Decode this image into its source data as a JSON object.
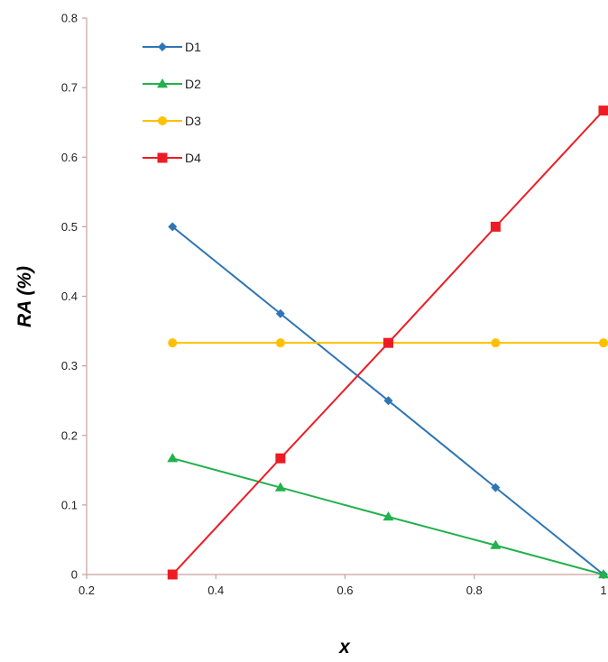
{
  "chart_data": {
    "type": "line",
    "title": "",
    "xlabel": "x",
    "ylabel": "RA (%)",
    "xlim": [
      0.2,
      1.0
    ],
    "ylim": [
      0,
      0.8
    ],
    "x_ticks": [
      0.2,
      0.4,
      0.6,
      0.8,
      1
    ],
    "x_tick_labels": [
      "0.2",
      "0.4",
      "0.6",
      "0.8",
      "1"
    ],
    "y_ticks": [
      0,
      0.1,
      0.2,
      0.3,
      0.4,
      0.5,
      0.6,
      0.7,
      0.8
    ],
    "y_tick_labels": [
      "0",
      "0.1",
      "0.2",
      "0.3",
      "0.4",
      "0.5",
      "0.6",
      "0.7",
      "0.8"
    ],
    "grid": false,
    "legend_position": "top-left",
    "x": [
      0.333,
      0.5,
      0.667,
      0.833,
      1.0
    ],
    "series": [
      {
        "name": "D1",
        "color": "#2e75b6",
        "marker": "diamond",
        "values": [
          0.5,
          0.375,
          0.25,
          0.125,
          0.0
        ]
      },
      {
        "name": "D2",
        "color": "#22b14c",
        "marker": "triangle",
        "values": [
          0.167,
          0.125,
          0.083,
          0.042,
          0.0
        ]
      },
      {
        "name": "D3",
        "color": "#ffc000",
        "marker": "circle",
        "values": [
          0.333,
          0.333,
          0.333,
          0.333,
          0.333
        ]
      },
      {
        "name": "D4",
        "color": "#ed1c24",
        "marker": "square",
        "values": [
          0.0,
          0.167,
          0.333,
          0.5,
          0.667
        ]
      }
    ],
    "axis_color": "#c8a09c"
  }
}
